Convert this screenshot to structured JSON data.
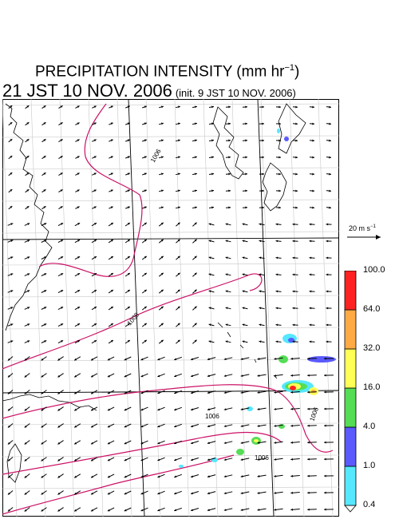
{
  "title": {
    "main": "PRECIPITATION INTENSITY (mm hr",
    "sup": "−1",
    "close": ")"
  },
  "subtitle": {
    "valid_time": "21 JST 10 NOV. 2006",
    "init": "(init. 9 JST 10 NOV. 2006)"
  },
  "reference_vector": {
    "label": "20 m s",
    "sup": "−1"
  },
  "colorbar": {
    "levels": [
      "0.4",
      "1.0",
      "4.0",
      "16.0",
      "32.0",
      "64.0",
      "100.0"
    ],
    "colors": [
      "#ffffff",
      "#55e8ff",
      "#5a5aff",
      "#55dd55",
      "#ffff55",
      "#ffaa44",
      "#ff2222",
      "#cc44ff"
    ]
  },
  "isobars": {
    "labels": [
      "1006",
      "1008",
      "1006",
      "1006",
      "1006"
    ],
    "color": "#cc1166"
  }
}
